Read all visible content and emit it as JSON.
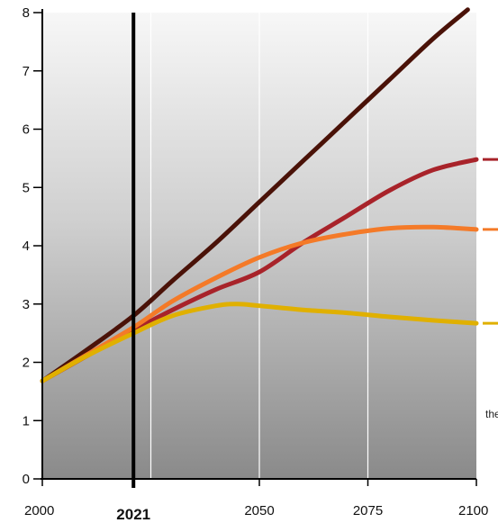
{
  "chart_data": {
    "type": "line",
    "title": "",
    "xlabel": "",
    "ylabel": "",
    "xlim": [
      2000,
      2100
    ],
    "ylim": [
      0,
      8
    ],
    "x_ticks": [
      "2000",
      "2021",
      "2050",
      "2075",
      "2100"
    ],
    "y_ticks": [
      "0",
      "1",
      "2",
      "3",
      "4",
      "5",
      "6",
      "7",
      "8"
    ],
    "grid": true,
    "reference_line": {
      "x": 2021,
      "label": "2021"
    },
    "side_note": "the",
    "series": [
      {
        "color": "#4a1208",
        "x": [
          2000,
          2010,
          2021,
          2030,
          2040,
          2050,
          2060,
          2070,
          2080,
          2090,
          2098
        ],
        "y": [
          1.68,
          2.2,
          2.8,
          3.4,
          4.05,
          4.75,
          5.45,
          6.15,
          6.85,
          7.55,
          8.05
        ]
      },
      {
        "color": "#a8232a",
        "x": [
          2000,
          2010,
          2021,
          2030,
          2040,
          2050,
          2060,
          2070,
          2080,
          2090,
          2100
        ],
        "y": [
          1.68,
          2.1,
          2.55,
          2.9,
          3.25,
          3.55,
          4.05,
          4.5,
          4.95,
          5.3,
          5.48
        ]
      },
      {
        "color": "#f47a28",
        "x": [
          2000,
          2010,
          2021,
          2030,
          2040,
          2050,
          2060,
          2070,
          2080,
          2090,
          2100
        ],
        "y": [
          1.68,
          2.12,
          2.6,
          3.05,
          3.45,
          3.8,
          4.05,
          4.2,
          4.3,
          4.32,
          4.28
        ]
      },
      {
        "color": "#e0b000",
        "x": [
          2000,
          2010,
          2021,
          2030,
          2040,
          2045,
          2050,
          2060,
          2070,
          2080,
          2090,
          2100
        ],
        "y": [
          1.68,
          2.1,
          2.5,
          2.8,
          2.97,
          3.0,
          2.97,
          2.9,
          2.85,
          2.78,
          2.72,
          2.67
        ]
      }
    ],
    "right_markers": [
      {
        "color": "#a8232a",
        "y": 5.48
      },
      {
        "color": "#f47a28",
        "y": 4.28
      },
      {
        "color": "#e0b000",
        "y": 2.67
      }
    ]
  }
}
